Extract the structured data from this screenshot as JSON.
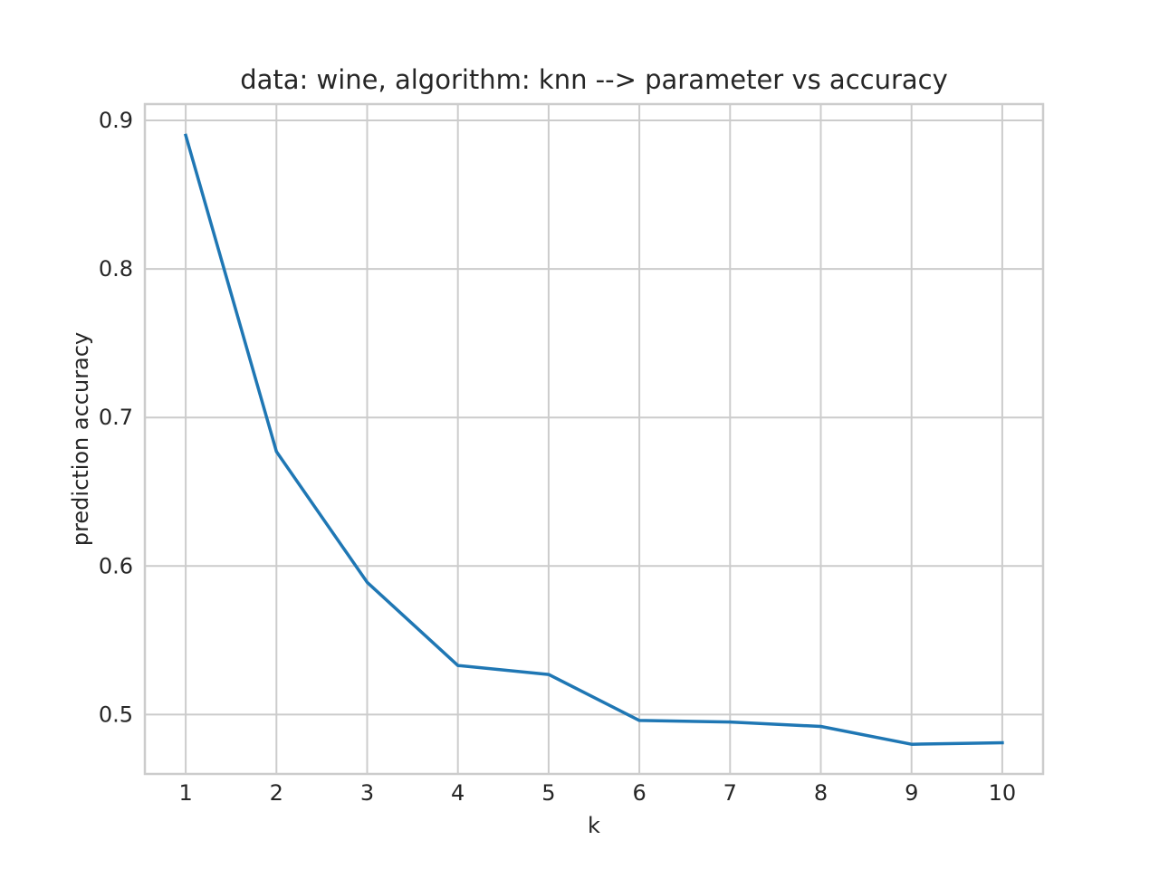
{
  "chart_data": {
    "type": "line",
    "title": "data: wine, algorithm: knn --> parameter vs accuracy",
    "xlabel": "k",
    "ylabel": "prediction accuracy",
    "x": [
      1,
      2,
      3,
      4,
      5,
      6,
      7,
      8,
      9,
      10
    ],
    "xticks": [
      "1",
      "2",
      "3",
      "4",
      "5",
      "6",
      "7",
      "8",
      "9",
      "10"
    ],
    "yticks": [
      0.5,
      0.6,
      0.7,
      0.8,
      0.9
    ],
    "ytick_labels": [
      "0.5",
      "0.6",
      "0.7",
      "0.8",
      "0.9"
    ],
    "xlim": [
      0.55,
      10.45
    ],
    "ylim": [
      0.46,
      0.911
    ],
    "grid": true,
    "series": [
      {
        "values": [
          0.89,
          0.677,
          0.589,
          0.533,
          0.527,
          0.496,
          0.495,
          0.492,
          0.48,
          0.481
        ],
        "color": "#1f77b4"
      }
    ]
  }
}
